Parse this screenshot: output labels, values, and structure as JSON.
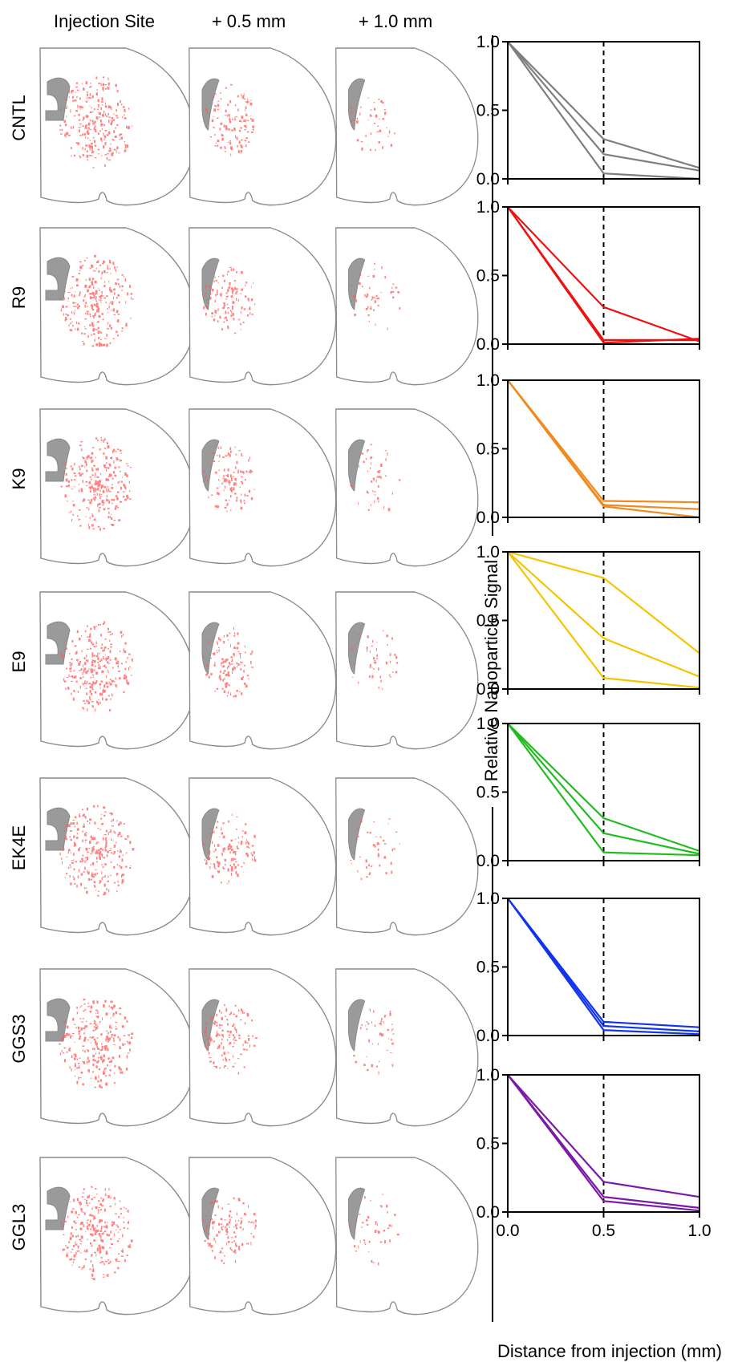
{
  "columns": [
    "Injection Site",
    "+ 0.5 mm",
    "+ 1.0 mm"
  ],
  "rows": [
    "CNTL",
    "R9",
    "K9",
    "E9",
    "EK4E",
    "GGS3",
    "GGL3"
  ],
  "colors": {
    "CNTL": "#7f7f7f",
    "R9": "#ee1111",
    "K9": "#f08a1e",
    "E9": "#f5c400",
    "EK4E": "#22bb22",
    "GGS3": "#1133ee",
    "GGL3": "#7a1aa6",
    "signal": "#ff5a5a",
    "ventricle": "#9a9a9a"
  },
  "chart_data": {
    "type": "line",
    "xlabel": "Distance from injection (mm)",
    "ylabel": "Relative Nanoparticle Signal",
    "xlim": [
      0,
      1.0
    ],
    "ylim": [
      0,
      1.0
    ],
    "xticks": [
      "0.0",
      "0.5",
      "1.0"
    ],
    "yticks": [
      "0.0",
      "0.5",
      "1.0"
    ],
    "reference_line_x": 0.5,
    "x": [
      0,
      0.5,
      1.0
    ],
    "panels": [
      {
        "group": "CNTL",
        "series": [
          [
            1,
            0.29,
            0.08
          ],
          [
            1,
            0.18,
            0.06
          ],
          [
            1,
            0.04,
            0.0
          ]
        ]
      },
      {
        "group": "R9",
        "series": [
          [
            1,
            0.27,
            0.02
          ],
          [
            1,
            0.03,
            0.03
          ],
          [
            1,
            0.01,
            0.04
          ]
        ]
      },
      {
        "group": "K9",
        "series": [
          [
            1,
            0.12,
            0.11
          ],
          [
            1,
            0.09,
            0.06
          ],
          [
            1,
            0.08,
            0.0
          ]
        ]
      },
      {
        "group": "E9",
        "series": [
          [
            1,
            0.81,
            0.26
          ],
          [
            1,
            0.37,
            0.09
          ],
          [
            1,
            0.08,
            0.01
          ]
        ]
      },
      {
        "group": "EK4E",
        "series": [
          [
            1,
            0.31,
            0.07
          ],
          [
            1,
            0.2,
            0.05
          ],
          [
            1,
            0.06,
            0.04
          ]
        ]
      },
      {
        "group": "GGS3",
        "series": [
          [
            1,
            0.1,
            0.06
          ],
          [
            1,
            0.07,
            0.03
          ],
          [
            1,
            0.04,
            0.01
          ]
        ]
      },
      {
        "group": "GGL3",
        "series": [
          [
            1,
            0.22,
            0.11
          ],
          [
            1,
            0.11,
            0.03
          ],
          [
            1,
            0.08,
            0.01
          ]
        ]
      }
    ]
  }
}
